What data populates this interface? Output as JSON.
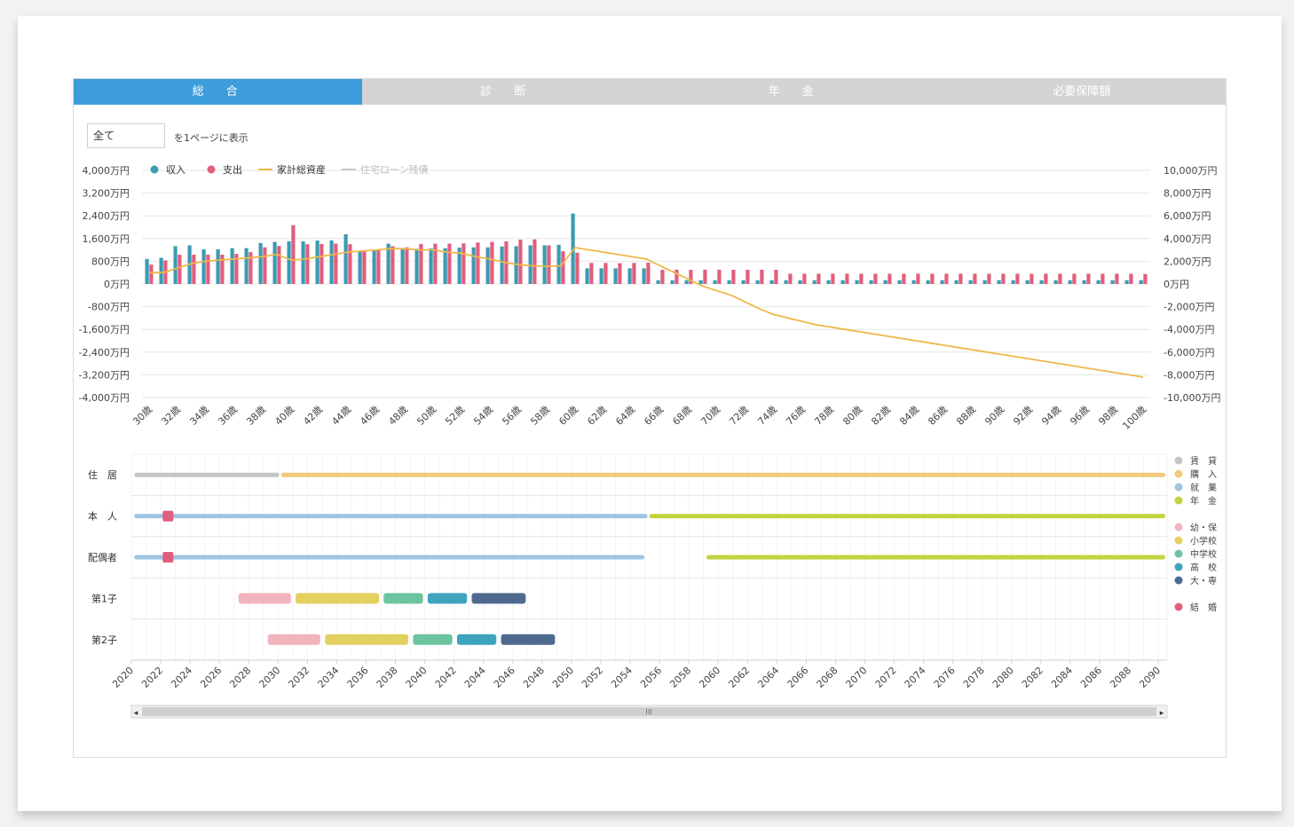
{
  "tabs": [
    {
      "label": "総　合",
      "active": true
    },
    {
      "label": "診　断",
      "active": false
    },
    {
      "label": "年　金",
      "active": false
    },
    {
      "label": "必要保障額",
      "active": false
    }
  ],
  "display": {
    "select_value": "全て",
    "suffix": "を1ページに表示"
  },
  "chart_data": {
    "type": "bar",
    "legend": [
      {
        "label": "収入",
        "color": "#3c9ab2",
        "kind": "bar"
      },
      {
        "label": "支出",
        "color": "#e05f7c",
        "kind": "bar"
      },
      {
        "label": "家計総資産",
        "color": "#f0b74a",
        "kind": "line"
      },
      {
        "label": "住宅ローン残債",
        "color": "#c8c8c8",
        "kind": "line"
      }
    ],
    "ylim_left": [
      -4000,
      4000
    ],
    "ylim_right": [
      -10000,
      10000
    ],
    "yticks_left": [
      "4,000万円",
      "3,200万円",
      "2,400万円",
      "1,600万円",
      "800万円",
      "0万円",
      "-800万円",
      "-1,600万円",
      "-2,400万円",
      "-3,200万円",
      "-4,000万円"
    ],
    "yticks_right": [
      "10,000万円",
      "8,000万円",
      "6,000万円",
      "4,000万円",
      "2,000万円",
      "0万円",
      "-2,000万円",
      "-4,000万円",
      "-6,000万円",
      "-8,000万円",
      "-10,000万円"
    ],
    "xtick_labels": [
      "30歳",
      "32歳",
      "34歳",
      "36歳",
      "38歳",
      "40歳",
      "42歳",
      "44歳",
      "46歳",
      "48歳",
      "50歳",
      "52歳",
      "54歳",
      "56歳",
      "58歳",
      "60歳",
      "62歳",
      "64歳",
      "66歳",
      "68歳",
      "70歳",
      "72歳",
      "74歳",
      "76歳",
      "78歳",
      "80歳",
      "82歳",
      "84歳",
      "86歳",
      "88歳",
      "90歳",
      "92歳",
      "94歳",
      "96歳",
      "98歳",
      "100歳"
    ],
    "ages": [
      30,
      31,
      32,
      33,
      34,
      35,
      36,
      37,
      38,
      39,
      40,
      41,
      42,
      43,
      44,
      45,
      46,
      47,
      48,
      49,
      50,
      51,
      52,
      53,
      54,
      55,
      56,
      57,
      58,
      59,
      60,
      61,
      62,
      63,
      64,
      65,
      66,
      67,
      68,
      69,
      70,
      71,
      72,
      73,
      74,
      75,
      76,
      77,
      78,
      79,
      80,
      81,
      82,
      83,
      84,
      85,
      86,
      87,
      88,
      89,
      90,
      91,
      92,
      93,
      94,
      95,
      96,
      97,
      98,
      99,
      100
    ],
    "series": [
      {
        "name": "収入",
        "values": [
          880,
          920,
          1330,
          1360,
          1220,
          1220,
          1260,
          1260,
          1440,
          1480,
          1500,
          1500,
          1530,
          1530,
          1750,
          1150,
          1170,
          1420,
          1250,
          1240,
          1250,
          1260,
          1280,
          1290,
          1290,
          1320,
          1330,
          1360,
          1360,
          1380,
          2480,
          550,
          550,
          550,
          550,
          550,
          130,
          130,
          130,
          130,
          130,
          130,
          130,
          130,
          130,
          130,
          130,
          130,
          130,
          130,
          130,
          130,
          130,
          130,
          130,
          130,
          130,
          130,
          130,
          130,
          130,
          130,
          130,
          130,
          130,
          130,
          130,
          130,
          130,
          130,
          130
        ]
      },
      {
        "name": "支出",
        "values": [
          680,
          830,
          1030,
          1030,
          1030,
          1030,
          1060,
          1120,
          1290,
          1340,
          2070,
          1400,
          1410,
          1420,
          1400,
          1180,
          1190,
          1330,
          1290,
          1410,
          1420,
          1420,
          1430,
          1460,
          1480,
          1500,
          1560,
          1570,
          1360,
          1150,
          1100,
          740,
          740,
          730,
          740,
          750,
          500,
          500,
          500,
          500,
          500,
          500,
          500,
          500,
          500,
          360,
          360,
          360,
          360,
          360,
          360,
          360,
          360,
          360,
          360,
          360,
          360,
          360,
          360,
          360,
          360,
          360,
          360,
          360,
          360,
          360,
          360,
          360,
          360,
          360,
          350
        ]
      },
      {
        "name": "家計総資産",
        "values": [
          1000,
          1000,
          1400,
          1800,
          2000,
          2100,
          2200,
          2300,
          2400,
          2600,
          2100,
          2200,
          2400,
          2600,
          2800,
          2900,
          3000,
          3100,
          3100,
          3000,
          3000,
          2800,
          2700,
          2400,
          2200,
          1900,
          1700,
          1600,
          1550,
          1600,
          3200,
          3000,
          2800,
          2600,
          2400,
          2200,
          1600,
          1000,
          400,
          -200,
          -600,
          -1000,
          -1600,
          -2200,
          -2700,
          -3000,
          -3300,
          -3600,
          -3800,
          -4000,
          -4200,
          -4400,
          -4600,
          -4800,
          -5000,
          -5200,
          -5400,
          -5600,
          -5800,
          -6000,
          -6200,
          -6400,
          -6600,
          -6800,
          -7000,
          -7200,
          -7400,
          -7600,
          -7800,
          -8000,
          -8200
        ]
      }
    ]
  },
  "timeline": {
    "rows": [
      "住　居",
      "本　人",
      "配偶者",
      "第1子",
      "第2子"
    ],
    "years": [
      "2020",
      "2022",
      "2024",
      "2026",
      "2028",
      "2030",
      "2032",
      "2034",
      "2036",
      "2038",
      "2040",
      "2042",
      "2044",
      "2046",
      "2048",
      "2050",
      "2052",
      "2054",
      "2056",
      "2058",
      "2060",
      "2062",
      "2064",
      "2066",
      "2068",
      "2070",
      "2072",
      "2074",
      "2076",
      "2078",
      "2080",
      "2082",
      "2084",
      "2086",
      "2088",
      "2090"
    ],
    "bars": [
      {
        "row": 0,
        "start": 2020.2,
        "end": 2030.2,
        "color": "#c5c5c5"
      },
      {
        "row": 0,
        "start": 2030.2,
        "end": 2090.6,
        "color": "#f2c87a"
      },
      {
        "row": 1,
        "start": 2020.2,
        "end": 2055.3,
        "color": "#9ec5e2"
      },
      {
        "row": 1,
        "start": 2055.3,
        "end": 2090.6,
        "color": "#c2d33f"
      },
      {
        "row": 2,
        "start": 2020.2,
        "end": 2055.1,
        "color": "#9ec5e2"
      },
      {
        "row": 2,
        "start": 2059.2,
        "end": 2090.6,
        "color": "#c2d33f"
      },
      {
        "row": 3,
        "start": 2027.3,
        "end": 2031.0,
        "color": "#f2b3bd"
      },
      {
        "row": 3,
        "start": 2031.2,
        "end": 2037.0,
        "color": "#e2d060"
      },
      {
        "row": 3,
        "start": 2037.2,
        "end": 2040.0,
        "color": "#6cc3a0"
      },
      {
        "row": 3,
        "start": 2040.2,
        "end": 2043.0,
        "color": "#3ea3bf"
      },
      {
        "row": 3,
        "start": 2043.2,
        "end": 2047.0,
        "color": "#4f6a8f"
      },
      {
        "row": 4,
        "start": 2029.3,
        "end": 2033.0,
        "color": "#f2b3bd"
      },
      {
        "row": 4,
        "start": 2033.2,
        "end": 2039.0,
        "color": "#e2d060"
      },
      {
        "row": 4,
        "start": 2039.2,
        "end": 2042.0,
        "color": "#6cc3a0"
      },
      {
        "row": 4,
        "start": 2042.2,
        "end": 2045.0,
        "color": "#3ea3bf"
      },
      {
        "row": 4,
        "start": 2045.2,
        "end": 2049.0,
        "color": "#4f6a8f"
      }
    ],
    "markers": [
      {
        "row": 1,
        "year": 2022.5,
        "color": "#e05f7c"
      },
      {
        "row": 2,
        "year": 2022.5,
        "color": "#e05f7c"
      }
    ],
    "legend": [
      {
        "label": "賃　貸",
        "color": "#c5c5c5"
      },
      {
        "label": "購　入",
        "color": "#f2c87a"
      },
      {
        "label": "就　業",
        "color": "#9ec5e2"
      },
      {
        "label": "年　金",
        "color": "#c2d33f"
      },
      {
        "label": "幼・保",
        "color": "#f2b3bd"
      },
      {
        "label": "小学校",
        "color": "#e2d060"
      },
      {
        "label": "中学校",
        "color": "#6cc3a0"
      },
      {
        "label": "高　校",
        "color": "#3ea3bf"
      },
      {
        "label": "大・専",
        "color": "#4f6a8f"
      },
      {
        "label": "結　婚",
        "color": "#e05f7c"
      }
    ]
  },
  "scrollbar": {
    "grip_label": "III",
    "left_arrow": "◂",
    "right_arrow": "▸"
  }
}
